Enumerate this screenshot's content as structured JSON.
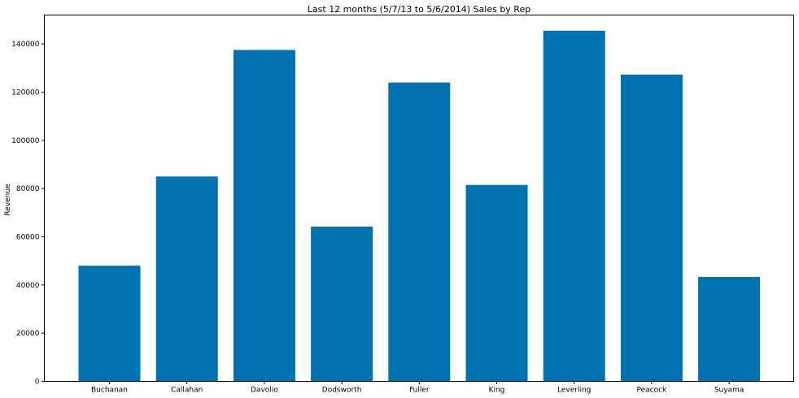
{
  "chart_data": {
    "type": "bar",
    "title": "Last 12 months (5/7/13 to 5/6/2014) Sales by Rep",
    "xlabel": "",
    "ylabel": "Revenue",
    "categories": [
      "Buchanan",
      "Callahan",
      "Davolio",
      "Dodsworth",
      "Fuller",
      "King",
      "Leverling",
      "Peacock",
      "Suyama"
    ],
    "values": [
      48000,
      85000,
      137500,
      64200,
      124000,
      81500,
      145500,
      127300,
      43300
    ],
    "ylim": [
      0,
      152000
    ],
    "yticks": [
      0,
      20000,
      40000,
      60000,
      80000,
      100000,
      120000,
      140000
    ],
    "ytick_labels": [
      "0",
      "20000",
      "40000",
      "60000",
      "80000",
      "100000",
      "120000",
      "140000"
    ],
    "bar_color": "#0072b2",
    "grid": false,
    "legend": "none"
  }
}
